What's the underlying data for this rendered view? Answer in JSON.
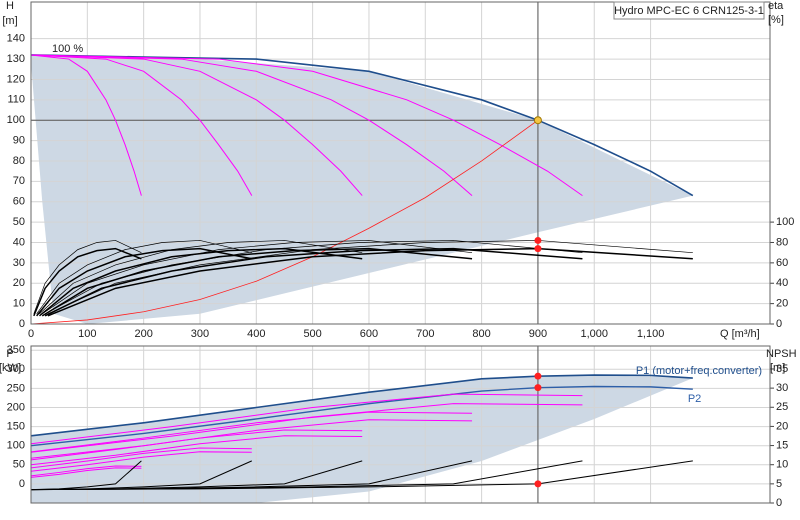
{
  "chart_data": [
    {
      "type": "line",
      "title": "Hydro MPC-EC 6 CRN125-3-1",
      "y_label": "H",
      "y_unit": "[m]",
      "y2_label": "eta",
      "y2_unit": "[%]",
      "x_label": "Q [m³/h]",
      "annotation": "100 %",
      "xlim": [
        0,
        1312
      ],
      "xticks": [
        0,
        100,
        200,
        300,
        400,
        500,
        600,
        700,
        800,
        900,
        {
          "value": 1000,
          "label": "1,000"
        },
        {
          "value": 1100,
          "label": "1,100"
        }
      ],
      "ylim": [
        0,
        158
      ],
      "yticks": [
        0,
        10,
        20,
        30,
        40,
        50,
        60,
        70,
        80,
        90,
        100,
        110,
        120,
        130,
        140
      ],
      "y2lim": [
        0,
        316
      ],
      "y2ticks": [
        0,
        20,
        40,
        60,
        80,
        100
      ],
      "grid": true,
      "area": {
        "color": "#cdd8e4",
        "x": [
          0,
          20,
          40,
          100,
          300,
          600,
          900,
          1175
        ],
        "upper": [
          132,
          132,
          132,
          131,
          130,
          124,
          100,
          63
        ],
        "lower": [
          128,
          60,
          5,
          0,
          5,
          25,
          45,
          63
        ]
      },
      "series": [
        {
          "color": "#1f4e8c",
          "width": 1.6,
          "x": [
            0,
            200,
            400,
            600,
            800,
            900,
            1000,
            1100,
            1175
          ],
          "values": [
            132,
            131,
            130,
            124,
            110,
            100,
            88,
            75,
            63
          ]
        },
        {
          "color": "#ff00ff",
          "width": 1,
          "x": [
            0,
            33,
            67,
            100,
            133,
            150,
            167,
            183,
            196
          ],
          "values": [
            132,
            131,
            130,
            124,
            110,
            100,
            88,
            75,
            63
          ]
        },
        {
          "color": "#ff00ff",
          "width": 1,
          "x": [
            0,
            67,
            133,
            200,
            267,
            300,
            333,
            367,
            392
          ],
          "values": [
            132,
            131,
            130,
            124,
            110,
            100,
            88,
            75,
            63
          ]
        },
        {
          "color": "#ff00ff",
          "width": 1,
          "x": [
            0,
            100,
            200,
            300,
            400,
            450,
            500,
            550,
            588
          ],
          "values": [
            132,
            131,
            130,
            124,
            110,
            100,
            88,
            75,
            63
          ]
        },
        {
          "color": "#ff00ff",
          "width": 1,
          "x": [
            0,
            133,
            267,
            400,
            533,
            600,
            667,
            733,
            783
          ],
          "values": [
            132,
            131,
            130,
            124,
            110,
            100,
            88,
            75,
            63
          ]
        },
        {
          "color": "#ff00ff",
          "width": 1,
          "x": [
            0,
            167,
            333,
            500,
            667,
            750,
            833,
            917,
            979
          ],
          "values": [
            132,
            131,
            130,
            124,
            110,
            100,
            88,
            75,
            63
          ]
        },
        {
          "color": "#ff2020",
          "width": 0.8,
          "x": [
            0,
            100,
            200,
            300,
            400,
            500,
            600,
            700,
            800,
            900
          ],
          "values": [
            0,
            2,
            6,
            12,
            21,
            33,
            47,
            62,
            80,
            100
          ]
        },
        {
          "color": "#000000",
          "width": 0.7,
          "axis": "y2",
          "x": [
            5,
            25,
            50,
            83,
            117,
            150,
            196
          ],
          "values": [
            10,
            40,
            58,
            73,
            80,
            82,
            70
          ]
        },
        {
          "color": "#000000",
          "width": 0.7,
          "axis": "y2",
          "x": [
            10,
            50,
            100,
            167,
            233,
            300,
            392
          ],
          "values": [
            10,
            40,
            58,
            73,
            80,
            82,
            70
          ]
        },
        {
          "color": "#000000",
          "width": 0.7,
          "axis": "y2",
          "x": [
            15,
            75,
            150,
            250,
            350,
            450,
            588
          ],
          "values": [
            10,
            40,
            58,
            73,
            80,
            82,
            70
          ]
        },
        {
          "color": "#000000",
          "width": 0.7,
          "axis": "y2",
          "x": [
            20,
            100,
            200,
            333,
            467,
            600,
            783
          ],
          "values": [
            10,
            40,
            58,
            73,
            80,
            82,
            70
          ]
        },
        {
          "color": "#000000",
          "width": 0.7,
          "axis": "y2",
          "x": [
            25,
            125,
            250,
            417,
            583,
            750,
            979
          ],
          "values": [
            10,
            40,
            58,
            73,
            80,
            82,
            70
          ]
        },
        {
          "color": "#000000",
          "width": 0.7,
          "axis": "y2",
          "x": [
            30,
            150,
            300,
            500,
            700,
            900,
            1175
          ],
          "values": [
            10,
            40,
            58,
            73,
            80,
            82,
            70
          ]
        },
        {
          "color": "#000000",
          "width": 1.5,
          "axis": "y2",
          "x": [
            5,
            25,
            50,
            83,
            117,
            150,
            196
          ],
          "values": [
            8,
            35,
            52,
            66,
            72,
            74,
            64
          ]
        },
        {
          "color": "#000000",
          "width": 1.5,
          "axis": "y2",
          "x": [
            10,
            50,
            100,
            167,
            233,
            300,
            392
          ],
          "values": [
            8,
            35,
            52,
            66,
            72,
            74,
            64
          ]
        },
        {
          "color": "#000000",
          "width": 1.5,
          "axis": "y2",
          "x": [
            15,
            75,
            150,
            250,
            350,
            450,
            588
          ],
          "values": [
            8,
            35,
            52,
            66,
            72,
            74,
            64
          ]
        },
        {
          "color": "#000000",
          "width": 1.5,
          "axis": "y2",
          "x": [
            20,
            100,
            200,
            333,
            467,
            600,
            783
          ],
          "values": [
            8,
            35,
            52,
            66,
            72,
            74,
            64
          ]
        },
        {
          "color": "#000000",
          "width": 1.5,
          "axis": "y2",
          "x": [
            25,
            125,
            250,
            417,
            583,
            750,
            979
          ],
          "values": [
            8,
            35,
            52,
            66,
            72,
            74,
            64
          ]
        },
        {
          "color": "#000000",
          "width": 1.5,
          "axis": "y2",
          "x": [
            30,
            150,
            300,
            500,
            700,
            900,
            1175
          ],
          "values": [
            8,
            35,
            52,
            66,
            72,
            74,
            64
          ]
        }
      ],
      "points": [
        {
          "x": 900,
          "value": 100,
          "color": "#f5c542"
        },
        {
          "x": 900,
          "value": 82,
          "color": "#ff2020",
          "axis": "y2"
        },
        {
          "x": 900,
          "value": 74,
          "color": "#ff2020",
          "axis": "y2"
        }
      ]
    },
    {
      "type": "line",
      "y_label": "P",
      "y_unit": "[kW]",
      "y2_label": "NPSH",
      "y2_unit": "[m]",
      "xlim": [
        0,
        1312
      ],
      "xticks": [
        0,
        100,
        200,
        300,
        400,
        500,
        600,
        700,
        800,
        900,
        1000,
        1100
      ],
      "ylim": [
        -50,
        361
      ],
      "yticks": [
        0,
        50,
        100,
        150,
        200,
        250,
        300,
        350
      ],
      "y2lim": [
        0,
        41
      ],
      "y2ticks": [
        0,
        5,
        10,
        15,
        20,
        25,
        30,
        35
      ],
      "grid": true,
      "area": {
        "color": "#cdd8e4",
        "x": [
          0,
          200,
          400,
          600,
          800,
          1000,
          1175
        ],
        "upper": [
          126,
          160,
          200,
          240,
          275,
          285,
          277
        ],
        "lower": [
          -50,
          -50,
          -50,
          -20,
          60,
          170,
          277
        ]
      },
      "series": [
        {
          "name": "P1 (motor+freq.converter)",
          "color": "#1f4e8c",
          "width": 1.6,
          "x": [
            0,
            200,
            400,
            600,
            800,
            900,
            1000,
            1100,
            1175
          ],
          "values": [
            126,
            160,
            200,
            240,
            275,
            282,
            285,
            284,
            277
          ]
        },
        {
          "name": "P2",
          "color": "#2e5fa8",
          "width": 1.4,
          "x": [
            0,
            200,
            400,
            600,
            800,
            900,
            1000,
            1100,
            1175
          ],
          "values": [
            100,
            132,
            170,
            210,
            243,
            252,
            255,
            254,
            248
          ]
        },
        {
          "color": "#ff00ff",
          "width": 1,
          "x": [
            0,
            50,
            100,
            150,
            196
          ],
          "values": [
            21,
            30,
            40,
            47,
            46
          ]
        },
        {
          "color": "#ff00ff",
          "width": 1,
          "x": [
            0,
            50,
            100,
            150,
            196
          ],
          "values": [
            17,
            25,
            35,
            42,
            41
          ]
        },
        {
          "color": "#ff00ff",
          "width": 1,
          "x": [
            0,
            100,
            200,
            300,
            392
          ],
          "values": [
            42,
            60,
            80,
            94,
            92
          ]
        },
        {
          "color": "#ff00ff",
          "width": 1,
          "x": [
            0,
            100,
            200,
            300,
            392
          ],
          "values": [
            33,
            50,
            70,
            84,
            83
          ]
        },
        {
          "color": "#ff00ff",
          "width": 1,
          "x": [
            0,
            150,
            300,
            450,
            588
          ],
          "values": [
            63,
            90,
            120,
            141,
            139
          ]
        },
        {
          "color": "#ff00ff",
          "width": 1,
          "x": [
            0,
            150,
            300,
            450,
            588
          ],
          "values": [
            50,
            75,
            105,
            126,
            124
          ]
        },
        {
          "color": "#ff00ff",
          "width": 1,
          "x": [
            0,
            200,
            400,
            600,
            783
          ],
          "values": [
            84,
            120,
            160,
            188,
            185
          ]
        },
        {
          "color": "#ff00ff",
          "width": 1,
          "x": [
            0,
            200,
            400,
            600,
            783
          ],
          "values": [
            67,
            100,
            140,
            168,
            165
          ]
        },
        {
          "color": "#ff00ff",
          "width": 1,
          "x": [
            0,
            250,
            500,
            750,
            979
          ],
          "values": [
            105,
            150,
            200,
            235,
            231
          ]
        },
        {
          "color": "#ff00ff",
          "width": 1,
          "x": [
            0,
            250,
            500,
            750,
            979
          ],
          "values": [
            83,
            125,
            175,
            210,
            207
          ]
        },
        {
          "color": "#000000",
          "width": 1,
          "axis": "y2",
          "x": [
            0,
            50,
            100,
            150,
            196
          ],
          "values": [
            3.5,
            3.7,
            4.2,
            5,
            11
          ]
        },
        {
          "color": "#000000",
          "width": 1,
          "axis": "y2",
          "x": [
            0,
            100,
            200,
            300,
            392
          ],
          "values": [
            3.5,
            3.7,
            4.2,
            5,
            11
          ]
        },
        {
          "color": "#000000",
          "width": 1,
          "axis": "y2",
          "x": [
            0,
            150,
            300,
            450,
            588
          ],
          "values": [
            3.5,
            3.7,
            4.2,
            5,
            11
          ]
        },
        {
          "color": "#000000",
          "width": 1,
          "axis": "y2",
          "x": [
            0,
            200,
            400,
            600,
            783
          ],
          "values": [
            3.5,
            3.7,
            4.2,
            5,
            11
          ]
        },
        {
          "color": "#000000",
          "width": 1,
          "axis": "y2",
          "x": [
            0,
            250,
            500,
            750,
            979
          ],
          "values": [
            3.5,
            3.7,
            4.2,
            5,
            11
          ]
        },
        {
          "color": "#000000",
          "width": 1,
          "axis": "y2",
          "x": [
            0,
            300,
            600,
            900,
            1175
          ],
          "values": [
            3.5,
            3.7,
            4.2,
            5,
            11
          ]
        }
      ],
      "points": [
        {
          "x": 900,
          "value": 282,
          "color": "#ff2020"
        },
        {
          "x": 900,
          "value": 252,
          "color": "#ff2020"
        },
        {
          "x": 900,
          "value": 5,
          "color": "#ff2020",
          "axis": "y2"
        }
      ]
    }
  ]
}
